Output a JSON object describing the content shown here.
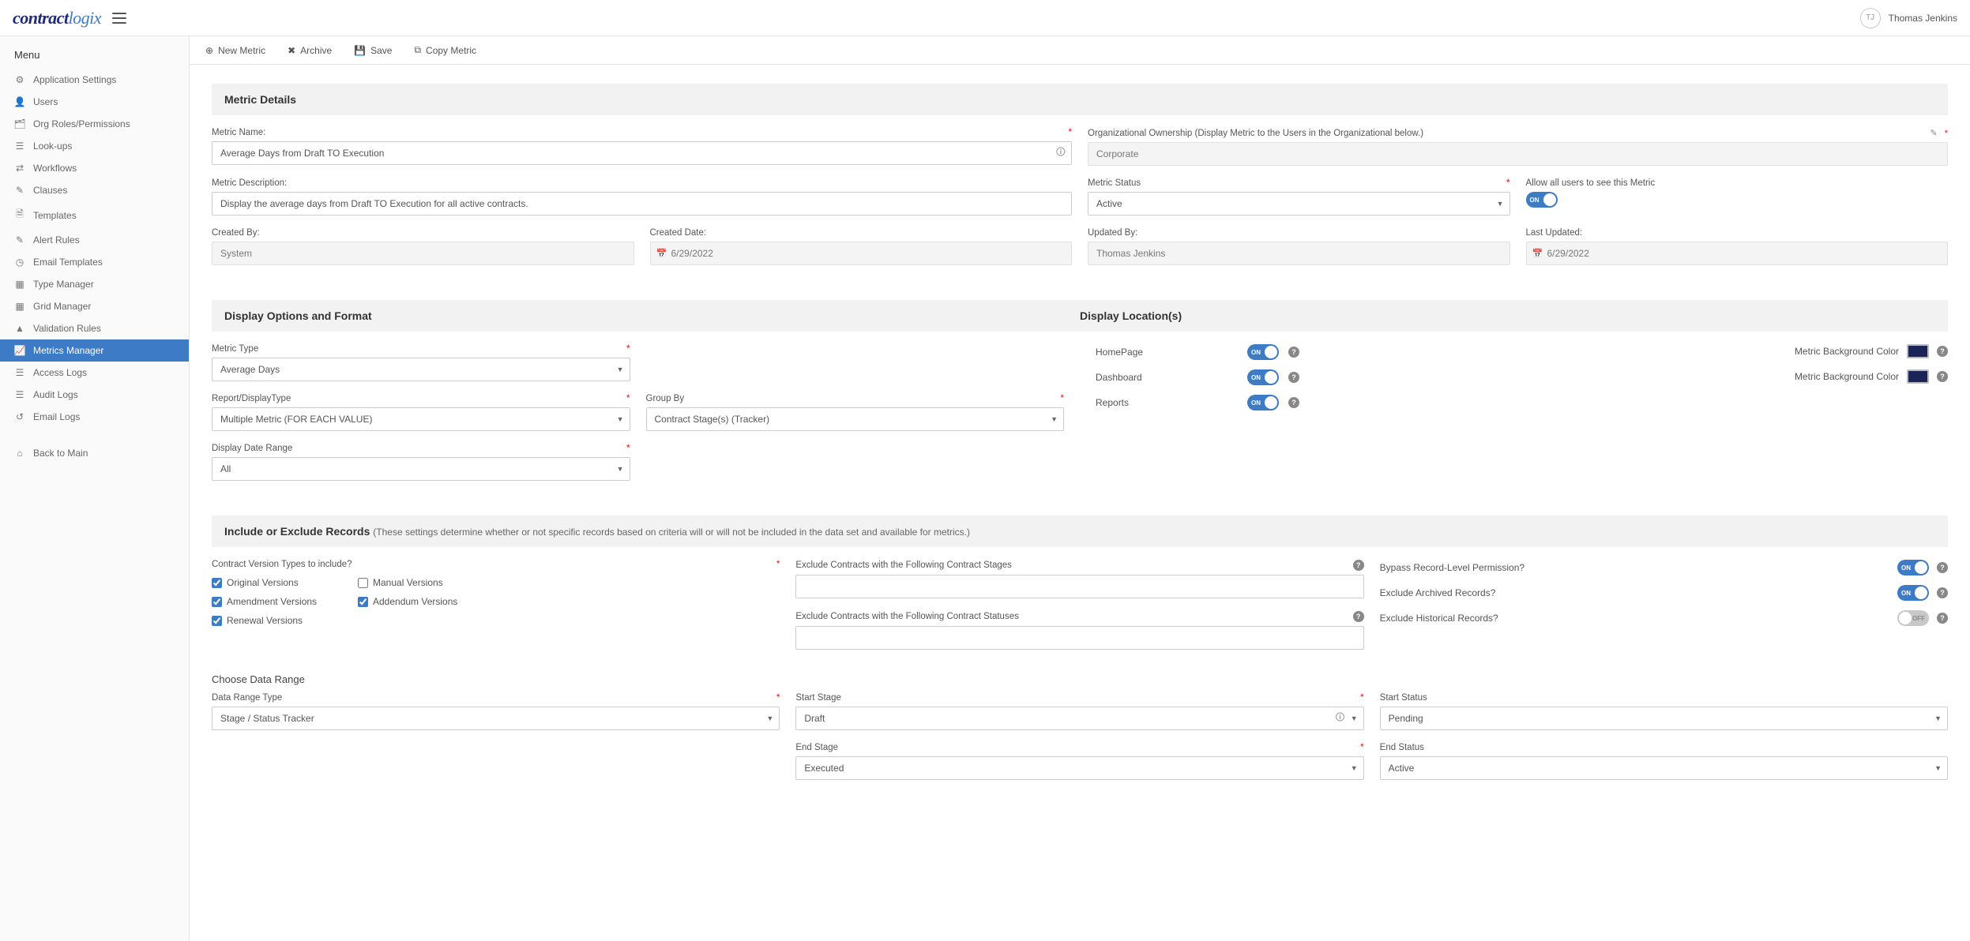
{
  "brand": {
    "part1": "contract",
    "part2": "logix"
  },
  "user": {
    "initials": "TJ",
    "name": "Thomas Jenkins"
  },
  "sidebar": {
    "title": "Menu",
    "items": [
      {
        "label": "Application Settings",
        "icon": "⚙"
      },
      {
        "label": "Users",
        "icon": "👤"
      },
      {
        "label": "Org Roles/Permissions",
        "icon": "🗂"
      },
      {
        "label": "Look-ups",
        "icon": "☰"
      },
      {
        "label": "Workflows",
        "icon": "⇄"
      },
      {
        "label": "Clauses",
        "icon": "✎"
      },
      {
        "label": "Templates",
        "icon": "🗎"
      },
      {
        "label": "Alert Rules",
        "icon": "✎"
      },
      {
        "label": "Email Templates",
        "icon": "◷"
      },
      {
        "label": "Type Manager",
        "icon": "▦"
      },
      {
        "label": "Grid Manager",
        "icon": "▦"
      },
      {
        "label": "Validation Rules",
        "icon": "▲"
      },
      {
        "label": "Metrics Manager",
        "icon": "📈",
        "active": true
      },
      {
        "label": "Access Logs",
        "icon": "☰"
      },
      {
        "label": "Audit Logs",
        "icon": "☰"
      },
      {
        "label": "Email Logs",
        "icon": "↺"
      }
    ],
    "back": {
      "label": "Back to Main",
      "icon": "⌂"
    }
  },
  "toolbar": {
    "newMetric": "New Metric",
    "archive": "Archive",
    "save": "Save",
    "copy": "Copy Metric"
  },
  "panels": {
    "details": {
      "title": "Metric Details",
      "metricNameLabel": "Metric Name:",
      "metricName": "Average Days from Draft TO Execution",
      "orgOwnLabel": "Organizational Ownership  (Display Metric to the Users in the Organizational below.)",
      "orgOwn": "Corporate",
      "descLabel": "Metric Description:",
      "desc": "Display the average days from Draft TO Execution for all active contracts.",
      "statusLabel": "Metric Status",
      "status": "Active",
      "allowAllLabel": "Allow all users to see this Metric",
      "createdByLabel": "Created By:",
      "createdBy": "System",
      "createdDateLabel": "Created Date:",
      "createdDate": "6/29/2022",
      "updatedByLabel": "Updated By:",
      "updatedBy": "Thomas Jenkins",
      "lastUpdatedLabel": "Last Updated:",
      "lastUpdated": "6/29/2022"
    },
    "display": {
      "title": "Display Options and Format",
      "locTitle": "Display Location(s)",
      "metricTypeLabel": "Metric Type",
      "metricType": "Average Days",
      "reportTypeLabel": "Report/DisplayType",
      "reportType": "Multiple Metric (FOR EACH VALUE)",
      "groupByLabel": "Group By",
      "groupBy": "Contract Stage(s) (Tracker)",
      "dateRangeLabel": "Display Date Range",
      "dateRange": "All",
      "homepage": "HomePage",
      "dashboard": "Dashboard",
      "reports": "Reports",
      "bgColor1Label": "Metric Background Color",
      "bgColor2Label": "Metric Background Color",
      "bgColor": "#1a2456"
    },
    "include": {
      "title": "Include or Exclude Records",
      "sub": "(These settings determine whether or not specific records based on criteria will or will not be included in the data set and available for metrics.)",
      "versionLabel": "Contract Version Types to include?",
      "chk": {
        "original": "Original Versions",
        "manual": "Manual Versions",
        "amendment": "Amendment Versions",
        "addendum": "Addendum Versions",
        "renewal": "Renewal Versions"
      },
      "exclStagesLabel": "Exclude Contracts with the Following Contract Stages",
      "exclStatusesLabel": "Exclude Contracts with the Following Contract Statuses",
      "bypassLabel": "Bypass Record-Level Permission?",
      "exclArchivedLabel": "Exclude Archived Records?",
      "exclHistoricalLabel": "Exclude Historical Records?",
      "chooseRange": "Choose Data Range",
      "dataRangeTypeLabel": "Data Range Type",
      "dataRangeType": "Stage / Status Tracker",
      "startStageLabel": "Start Stage",
      "startStage": "Draft",
      "endStageLabel": "End Stage",
      "endStage": "Executed",
      "startStatusLabel": "Start Status",
      "startStatus": "Pending",
      "endStatusLabel": "End Status",
      "endStatus": "Active"
    }
  },
  "text": {
    "on": "ON",
    "off": "OFF"
  }
}
